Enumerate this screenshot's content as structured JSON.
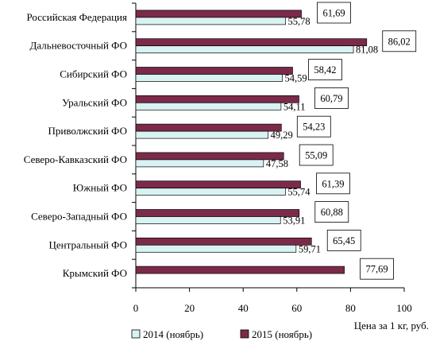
{
  "chart_data": {
    "type": "bar",
    "orientation": "horizontal",
    "categories": [
      "Российская Федерация",
      "Дальневосточный ФО",
      "Сибирский ФО",
      "Уральский ФО",
      "Приволжский ФО",
      "Северо-Кавказский ФО",
      "Южный ФО",
      "Северо-Западный ФО",
      "Центральный ФО",
      "Крымский ФО"
    ],
    "series": [
      {
        "name": "2014 (ноябрь)",
        "color": "#d9f2f2",
        "values": [
          55.78,
          81.08,
          54.59,
          54.11,
          49.29,
          47.58,
          55.74,
          53.91,
          59.71,
          null
        ],
        "labels": [
          "55,78",
          "81,08",
          "54,59",
          "54,11",
          "49,29",
          "47,58",
          "55,74",
          "53,91",
          "59,71",
          ""
        ]
      },
      {
        "name": "2015 (ноябрь)",
        "color": "#7b2a4a",
        "values": [
          61.69,
          86.02,
          58.42,
          60.79,
          54.23,
          55.09,
          61.39,
          60.88,
          65.45,
          77.69
        ],
        "labels": [
          "61,69",
          "86,02",
          "58,42",
          "60,79",
          "54,23",
          "55,09",
          "61,39",
          "60,88",
          "65,45",
          "77,69"
        ]
      }
    ],
    "xlabel": "Цена за 1 кг, руб.",
    "xlim": [
      0,
      100
    ],
    "xticks": [
      "0",
      "20",
      "40",
      "60",
      "80",
      "100"
    ],
    "grid": false,
    "legend_position": "bottom-left"
  }
}
